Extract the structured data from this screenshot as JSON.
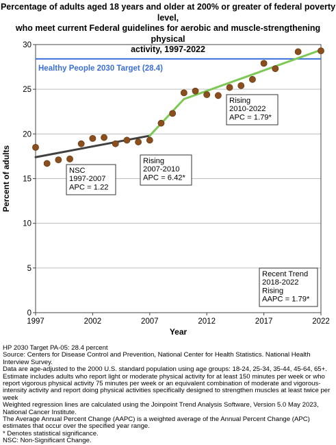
{
  "title_lines": [
    "Percentage of adults aged 18 years and older at 200% or greater of federal poverty level,",
    "who meet current Federal guidelines for aerobic and muscle-strengthening physical",
    "activity, 1997-2022"
  ],
  "chart_data": {
    "type": "scatter",
    "xlabel": "Year",
    "ylabel": "Percent of adults",
    "xlim": [
      1997,
      2022
    ],
    "ylim": [
      0,
      30
    ],
    "xticks": [
      1997,
      2002,
      2007,
      2012,
      2017,
      2022
    ],
    "yticks": [
      0,
      5,
      10,
      15,
      20,
      25,
      30
    ],
    "grid": "horizontal",
    "points": {
      "x": [
        1997,
        1998,
        1999,
        2000,
        2001,
        2002,
        2003,
        2004,
        2005,
        2006,
        2007,
        2008,
        2009,
        2010,
        2011,
        2012,
        2013,
        2014,
        2015,
        2016,
        2017,
        2018,
        2020,
        2022
      ],
      "y": [
        18.5,
        16.7,
        17.1,
        17.2,
        18.9,
        19.5,
        19.6,
        18.9,
        19.3,
        19.1,
        19.3,
        21.2,
        22.3,
        24.6,
        24.8,
        24.4,
        24.3,
        25.2,
        25.4,
        26.1,
        27.9,
        27.3,
        29.2,
        29.3
      ],
      "color": "#8b4f1d"
    },
    "trend_segments": [
      {
        "x": [
          1997,
          2007
        ],
        "y": [
          17.4,
          19.8
        ],
        "color": "#404040",
        "label_lines": [
          "NSC",
          "1997-2007",
          "APC =  1.22"
        ]
      },
      {
        "x": [
          2007,
          2010
        ],
        "y": [
          19.8,
          23.9
        ],
        "color": "#7dc855",
        "label_lines": [
          "Rising",
          "2007-2010",
          "APC =  6.42*"
        ]
      },
      {
        "x": [
          2010,
          2022
        ],
        "y": [
          23.9,
          29.4
        ],
        "color": "#7dc855",
        "label_lines": [
          "Rising",
          "2010-2022",
          "APC =  1.79*"
        ]
      }
    ],
    "target": {
      "value": 28.4,
      "label": "Healthy People 2030 Target (28.4)",
      "color": "#3a6fd8"
    },
    "recent_trend_lines": [
      "Recent Trend",
      "2018-2022",
      "Rising",
      "AAPC =  1.79*"
    ]
  },
  "notes": [
    "HP 2030 Target PA-05: 28.4 percent",
    "Source: Centers for Disease Control and Prevention, National Center for Health Statistics. National Health Interview Survey.",
    "Data are age-adjusted to the 2000 U.S. standard population using age groups: 18-24, 25-34, 35-44, 45-64, 65+.",
    "Estimate includes adults who report light or moderate physical activity for at least 150 minutes per week or who report vigorous physical activity 75 minutes per week or an equivalent combination of moderate and vigorous-intensity activity and report doing physical activities specifically designed to strengthen muscles at least twice per week",
    "Weighted regression lines are calculated using the Joinpoint Trend Analysis Software, Version 5.0 May 2023, National Cancer Institute.",
    "The Average Annual Percent Change (AAPC) is a weighted average of the Annual Percent Change (APC) estimates that occur over the specified year range.",
    "* Denotes statistical significance.",
    "NSC: Non-Significant Change."
  ]
}
